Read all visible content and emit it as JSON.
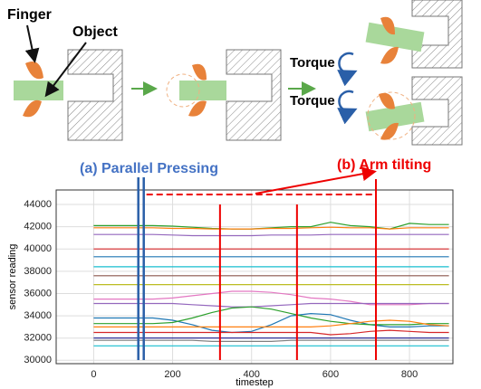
{
  "diagram": {
    "finger_label": "Finger",
    "object_label": "Object",
    "torque_labels": [
      "Torque",
      "Torque"
    ]
  },
  "chart_data": {
    "type": "line",
    "xlabel": "timestep",
    "ylabel": "sensor reading",
    "x": [
      0,
      50,
      100,
      150,
      200,
      250,
      300,
      350,
      400,
      450,
      500,
      550,
      600,
      650,
      700,
      750,
      800,
      850,
      900
    ],
    "xlim": [
      -95,
      910
    ],
    "ylim": [
      29700,
      45300
    ],
    "xticks": [
      0,
      200,
      400,
      600,
      800
    ],
    "yticks": [
      30000,
      32000,
      34000,
      36000,
      38000,
      40000,
      42000,
      44000
    ],
    "grid": true,
    "annotations": {
      "parallel_pressing": {
        "label": "(a) Parallel Pressing",
        "x": 120
      },
      "arm_tilting": {
        "label": "(b) Arm tilting",
        "x": [
          320,
          515,
          715
        ]
      }
    },
    "series": [
      {
        "color": "#2ca02c",
        "values": [
          42100,
          42100,
          42100,
          42100,
          42050,
          41950,
          41850,
          41800,
          41800,
          41900,
          42000,
          42000,
          42400,
          42100,
          42000,
          41800,
          42300,
          42200,
          42200
        ]
      },
      {
        "color": "#ff7f0e",
        "values": [
          41900,
          41900,
          41900,
          41900,
          41850,
          41850,
          41800,
          41800,
          41800,
          41850,
          41850,
          41900,
          41950,
          41900,
          41900,
          41800,
          41900,
          41900,
          41900
        ]
      },
      {
        "color": "#9467bd",
        "values": [
          41300,
          41300,
          41300,
          41300,
          41250,
          41200,
          41200,
          41200,
          41200,
          41250,
          41250,
          41250,
          41300,
          41300,
          41300,
          41300,
          41300,
          41300,
          41300
        ]
      },
      {
        "color": "#d62728",
        "values": [
          40000,
          40000,
          40000,
          40000,
          40000,
          40000,
          40000,
          40000,
          40000,
          40000,
          40000,
          40000,
          40000,
          40000,
          40000,
          40000,
          40000,
          40000,
          40000
        ]
      },
      {
        "color": "#1f77b4",
        "values": [
          39300,
          39300,
          39300,
          39300,
          39300,
          39300,
          39300,
          39300,
          39300,
          39300,
          39300,
          39300,
          39300,
          39300,
          39300,
          39300,
          39300,
          39300,
          39300
        ]
      },
      {
        "color": "#17becf",
        "values": [
          38400,
          38400,
          38400,
          38400,
          38400,
          38400,
          38400,
          38400,
          38400,
          38400,
          38400,
          38400,
          38400,
          38400,
          38400,
          38400,
          38400,
          38400,
          38400
        ]
      },
      {
        "color": "#8c564b",
        "values": [
          37600,
          37600,
          37600,
          37600,
          37600,
          37600,
          37600,
          37600,
          37600,
          37600,
          37600,
          37600,
          37600,
          37600,
          37600,
          37600,
          37600,
          37600,
          37600
        ]
      },
      {
        "color": "#bcbd22",
        "values": [
          36800,
          36800,
          36800,
          36800,
          36800,
          36800,
          36800,
          36800,
          36800,
          36800,
          36800,
          36800,
          36800,
          36800,
          36800,
          36800,
          36800,
          36800,
          36800
        ]
      },
      {
        "color": "#e377c2",
        "values": [
          35500,
          35500,
          35500,
          35500,
          35600,
          35800,
          36000,
          36200,
          36200,
          36100,
          35900,
          35600,
          35500,
          35300,
          35000,
          35000,
          35000,
          35100,
          35100
        ]
      },
      {
        "color": "#9467bd",
        "values": [
          35100,
          35100,
          35100,
          35100,
          35100,
          35000,
          34900,
          34800,
          34800,
          34900,
          35000,
          35100,
          35100,
          35100,
          35100,
          35100,
          35100,
          35100,
          35100
        ]
      },
      {
        "color": "#1f77b4",
        "values": [
          33800,
          33800,
          33800,
          33800,
          33600,
          33200,
          32700,
          32500,
          32600,
          33200,
          34000,
          34200,
          34100,
          33600,
          33200,
          33000,
          33000,
          33100,
          33100
        ]
      },
      {
        "color": "#2ca02c",
        "values": [
          33300,
          33300,
          33300,
          33300,
          33400,
          33800,
          34300,
          34700,
          34800,
          34600,
          34200,
          33800,
          33500,
          33300,
          33200,
          33200,
          33200,
          33300,
          33300
        ]
      },
      {
        "color": "#ff7f0e",
        "values": [
          33000,
          33000,
          33000,
          33000,
          33000,
          33000,
          33000,
          33000,
          33000,
          33000,
          33000,
          33000,
          33100,
          33300,
          33500,
          33600,
          33500,
          33200,
          33100
        ]
      },
      {
        "color": "#d62728",
        "values": [
          32500,
          32500,
          32500,
          32500,
          32500,
          32500,
          32500,
          32500,
          32500,
          32500,
          32500,
          32500,
          32300,
          32400,
          32600,
          32700,
          32600,
          32500,
          32500
        ]
      },
      {
        "color": "#1a1a8c",
        "values": [
          32000,
          32000,
          32000,
          32000,
          32000,
          32000,
          32000,
          32000,
          32000,
          32000,
          32000,
          32000,
          32000,
          32000,
          32000,
          32000,
          32000,
          32000,
          32000
        ]
      },
      {
        "color": "#7f7f7f",
        "values": [
          31800,
          31800,
          31800,
          31800,
          31800,
          31800,
          31700,
          31700,
          31700,
          31700,
          31800,
          31800,
          31800,
          31800,
          31800,
          31800,
          31800,
          31800,
          31800
        ]
      },
      {
        "color": "#17becf",
        "values": [
          31300,
          31300,
          31300,
          31300,
          31300,
          31300,
          31300,
          31300,
          31300,
          31300,
          31300,
          31300,
          31300,
          31300,
          31300,
          31300,
          31300,
          31300,
          31300
        ]
      }
    ]
  }
}
